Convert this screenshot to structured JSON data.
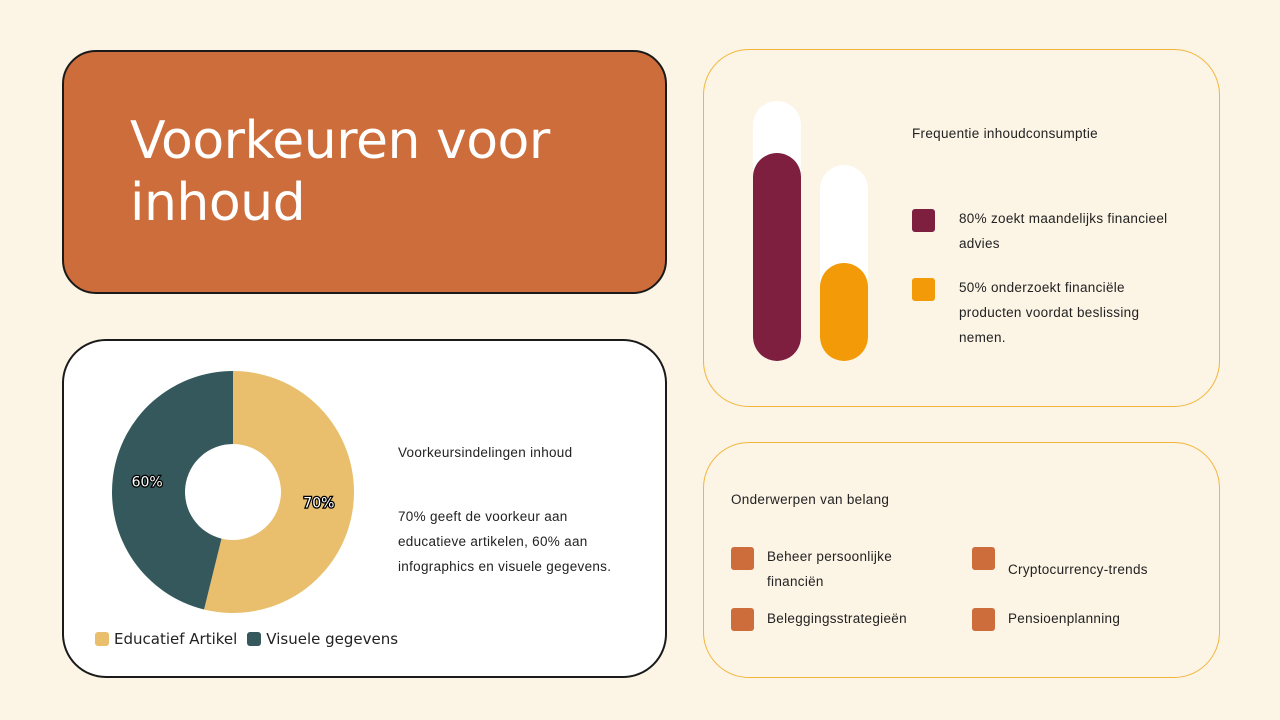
{
  "title_card": {
    "title": "Voorkeuren voor inhoud"
  },
  "donut_card": {
    "heading": "Voorkeursindelingen inhoud",
    "description": "70% geeft de voorkeur aan educatieve artikelen, 60% aan infographics en visuele gegevens.",
    "colors": {
      "educatief": "#e9bf6e",
      "visueel": "#34585b"
    }
  },
  "bars_card": {
    "heading": "Frequentie inhoudconsumptie",
    "items": [
      {
        "label": "80% zoekt maandelijks financieel advies",
        "color": "#7e1f40"
      },
      {
        "label": "50% onderzoekt financiële producten voordat beslissing nemen.",
        "color": "#f29a07"
      }
    ]
  },
  "topics_card": {
    "heading": "Onderwerpen van belang",
    "accent": "#cd6d3b",
    "items": [
      {
        "label": "Beheer persoonlijke financiën"
      },
      {
        "label": "Cryptocurrency-trends"
      },
      {
        "label": "Beleggingsstrategieën"
      },
      {
        "label": "Pensioenplanning"
      }
    ]
  },
  "chart_data": [
    {
      "type": "pie",
      "categories": [
        "Educatief Artikel",
        "Visuele gegevens"
      ],
      "values": [
        70,
        60
      ],
      "labels": [
        "70%",
        "60%"
      ],
      "legend_position": "bottom"
    },
    {
      "type": "bar",
      "categories": [
        "80% zoekt maandelijks financieel advies",
        "50% onderzoekt financiële producten voordat beslissing nemen."
      ],
      "values": [
        80,
        50
      ],
      "ylim": [
        0,
        100
      ]
    }
  ]
}
